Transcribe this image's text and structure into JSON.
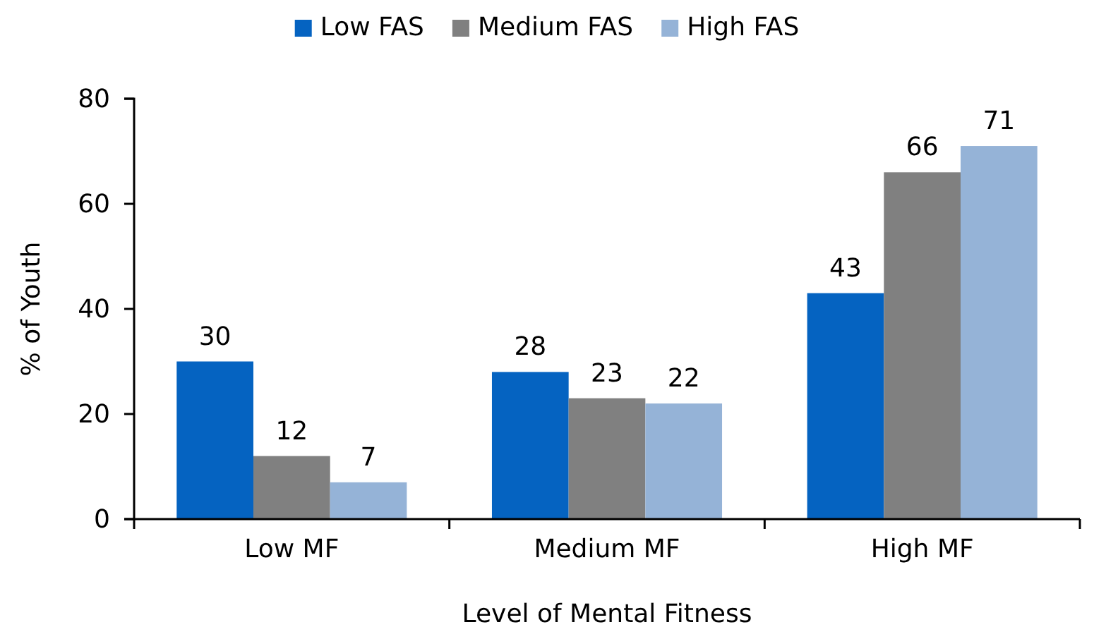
{
  "chart_data": {
    "type": "bar",
    "xlabel": "Level of Mental Fitness",
    "ylabel": "% of Youth",
    "categories": [
      "Low MF",
      "Medium MF",
      "High MF"
    ],
    "series": [
      {
        "name": "Low FAS",
        "color": "#0563c1",
        "values": [
          30,
          28,
          43
        ]
      },
      {
        "name": "Medium FAS",
        "color": "#808080",
        "values": [
          12,
          23,
          66
        ]
      },
      {
        "name": "High FAS",
        "color": "#95b3d7",
        "values": [
          7,
          22,
          71
        ]
      }
    ],
    "ylim": [
      0,
      80
    ],
    "yticks": [
      0,
      20,
      40,
      60,
      80
    ],
    "grid": false,
    "legend": "top",
    "data_labels": true
  }
}
